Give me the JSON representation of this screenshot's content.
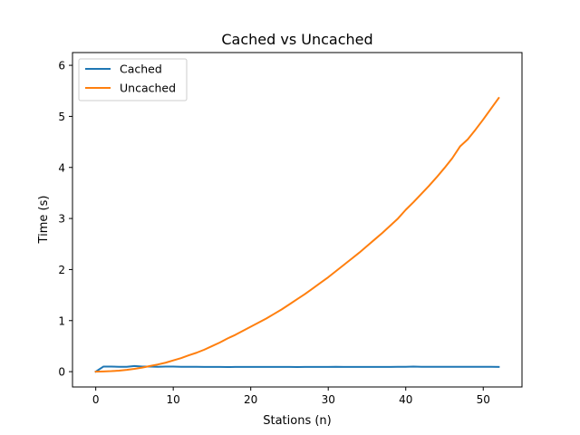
{
  "chart_data": {
    "type": "line",
    "title": "Cached vs Uncached",
    "xlabel": "Stations (n)",
    "ylabel": "Time (s)",
    "xlim": [
      -3,
      55
    ],
    "ylim": [
      -0.3,
      6.25
    ],
    "xticks": [
      0,
      10,
      20,
      30,
      40,
      50
    ],
    "yticks": [
      0,
      1,
      2,
      3,
      4,
      5,
      6
    ],
    "grid": false,
    "legend_position": "top-left",
    "x": [
      0,
      1,
      2,
      3,
      4,
      5,
      6,
      7,
      8,
      9,
      10,
      11,
      12,
      13,
      14,
      15,
      16,
      17,
      18,
      19,
      20,
      21,
      22,
      23,
      24,
      25,
      26,
      27,
      28,
      29,
      30,
      31,
      32,
      33,
      34,
      35,
      36,
      37,
      38,
      39,
      40,
      41,
      42,
      43,
      44,
      45,
      46,
      47,
      48,
      49,
      50,
      51,
      52
    ],
    "series": [
      {
        "name": "Cached",
        "color": "#1f77b4",
        "values": [
          0.0,
          0.1,
          0.1,
          0.095,
          0.095,
          0.11,
          0.1,
          0.1,
          0.095,
          0.1,
          0.1,
          0.095,
          0.095,
          0.095,
          0.093,
          0.093,
          0.093,
          0.09,
          0.093,
          0.093,
          0.093,
          0.093,
          0.093,
          0.093,
          0.093,
          0.093,
          0.09,
          0.093,
          0.093,
          0.093,
          0.093,
          0.095,
          0.093,
          0.093,
          0.093,
          0.093,
          0.093,
          0.093,
          0.093,
          0.095,
          0.095,
          0.1,
          0.095,
          0.095,
          0.095,
          0.095,
          0.095,
          0.095,
          0.095,
          0.095,
          0.095,
          0.095,
          0.093
        ]
      },
      {
        "name": "Uncached",
        "color": "#ff7f0e",
        "values": [
          0.0,
          0.005,
          0.01,
          0.02,
          0.035,
          0.055,
          0.08,
          0.11,
          0.14,
          0.175,
          0.22,
          0.265,
          0.32,
          0.37,
          0.43,
          0.5,
          0.57,
          0.65,
          0.72,
          0.8,
          0.88,
          0.96,
          1.04,
          1.13,
          1.22,
          1.32,
          1.42,
          1.52,
          1.63,
          1.74,
          1.85,
          1.97,
          2.09,
          2.21,
          2.33,
          2.46,
          2.59,
          2.72,
          2.86,
          3.0,
          3.17,
          3.32,
          3.48,
          3.64,
          3.81,
          3.99,
          4.18,
          4.41,
          4.55,
          4.74,
          4.94,
          5.15,
          5.36
        ]
      }
    ]
  }
}
